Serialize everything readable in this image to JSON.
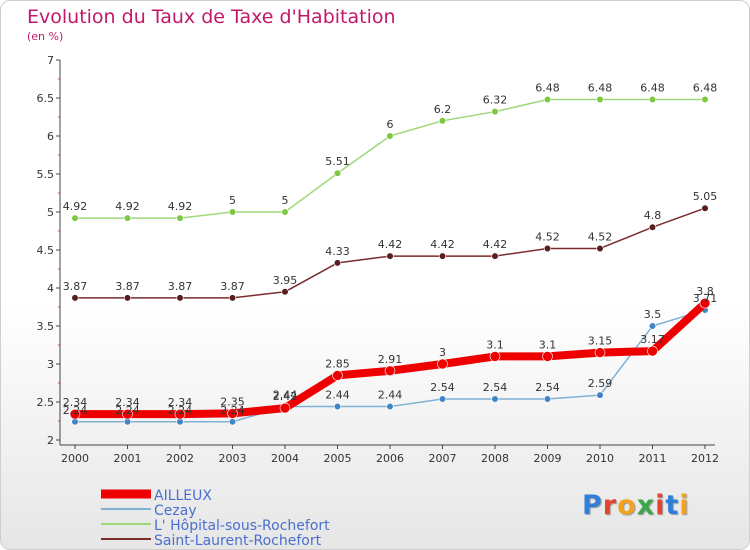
{
  "header": {
    "title": "Evolution du Taux de Taxe d'Habitation",
    "unit": "(en %)"
  },
  "brand": {
    "logo_letters": [
      "P",
      "r",
      "o",
      "x",
      "i",
      "t",
      "i"
    ],
    "logo_colors": [
      "#2f7fd8",
      "#e8432e",
      "#f2a21b",
      "#3aa84a",
      "#e8432e",
      "#2f7fd8",
      "#f2a21b"
    ]
  },
  "chart_data": {
    "type": "line",
    "title": "Evolution du Taux de Taxe d'Habitation",
    "ylabel": "(en %)",
    "x": [
      "2000",
      "2001",
      "2002",
      "2003",
      "2004",
      "2005",
      "2006",
      "2007",
      "2008",
      "2009",
      "2010",
      "2011",
      "2012"
    ],
    "ylim": [
      2,
      7
    ],
    "yticks": [
      "2",
      "2.5",
      "3",
      "3.5",
      "4",
      "4.5",
      "5",
      "5.5",
      "6",
      "6.5",
      "7"
    ],
    "grid": false,
    "legend_position": "bottom-left",
    "series": [
      {
        "name": "L' Hôpital-sous-Rochefort",
        "color": "#9fd87a",
        "dot": "#7cc843",
        "width": 1.5,
        "values": [
          4.92,
          4.92,
          4.92,
          5,
          5,
          5.51,
          6,
          6.2,
          6.32,
          6.48,
          6.48,
          6.48,
          6.48
        ],
        "labels": [
          "4.92",
          "4.92",
          "4.92",
          "5",
          "5",
          "5.51",
          "6",
          "6.2",
          "6.32",
          "6.48",
          "6.48",
          "6.48",
          "6.48"
        ]
      },
      {
        "name": "Saint-Laurent-Rochefort",
        "color": "#7a2c2c",
        "dot": "#5a1d1d",
        "width": 1.5,
        "values": [
          3.87,
          3.87,
          3.87,
          3.87,
          3.95,
          4.33,
          4.42,
          4.42,
          4.42,
          4.52,
          4.52,
          4.8,
          5.05
        ],
        "labels": [
          "3.87",
          "3.87",
          "3.87",
          "3.87",
          "3.95",
          "4.33",
          "4.42",
          "4.42",
          "4.42",
          "4.52",
          "4.52",
          "4.8",
          "5.05"
        ]
      },
      {
        "name": "Cezay",
        "color": "#7fb0d6",
        "dot": "#3f86c7",
        "width": 1.5,
        "values": [
          2.24,
          2.24,
          2.24,
          2.24,
          2.44,
          2.44,
          2.44,
          2.54,
          2.54,
          2.54,
          2.59,
          3.5,
          3.71
        ],
        "labels": [
          "2.24",
          "2.24",
          "2.24",
          "2.24",
          "2.44",
          "2.44",
          "2.44",
          "2.54",
          "2.54",
          "2.54",
          "2.59",
          "3.5",
          "3.71"
        ]
      },
      {
        "name": "AILLEUX",
        "color": "#ee0000",
        "dot": "#ee0000",
        "width": 8,
        "values": [
          2.34,
          2.34,
          2.34,
          2.35,
          2.42,
          2.85,
          2.91,
          3,
          3.1,
          3.1,
          3.15,
          3.17,
          3.8
        ],
        "labels": [
          "2.34",
          "2.34",
          "2.34",
          "2.35",
          "2.42",
          "2.85",
          "2.91",
          "3",
          "3.1",
          "3.1",
          "3.15",
          "3.17",
          "3.8"
        ]
      }
    ],
    "legend_order": [
      "AILLEUX",
      "Cezay",
      "L' Hôpital-sous-Rochefort",
      "Saint-Laurent-Rochefort"
    ]
  }
}
